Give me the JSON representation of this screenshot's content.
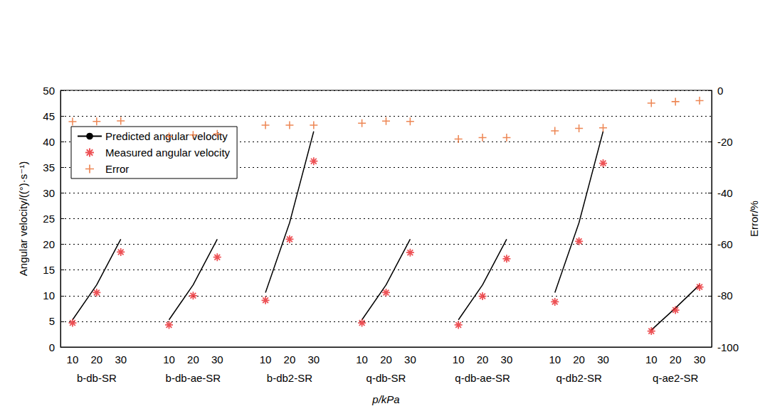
{
  "chart_data": {
    "type": "line",
    "x_label": "p/kPa",
    "y_label": "Angular velocity/((°)·s⁻¹)",
    "y2_label": "Error/%",
    "groups": [
      "b-db-SR",
      "b-db-ae-SR",
      "b-db2-SR",
      "q-db-SR",
      "q-db-ae-SR",
      "q-db2-SR",
      "q-ae2-SR"
    ],
    "categories": [
      10,
      20,
      30
    ],
    "series": [
      {
        "name": "Predicted angular velocity",
        "type": "line",
        "color": "#000000",
        "line_style": "solid",
        "marker": "none",
        "values": [
          [
            5.3,
            12.1,
            21.0
          ],
          [
            5.3,
            12.1,
            21.0
          ],
          [
            10.6,
            24.2,
            42.0
          ],
          [
            5.3,
            12.1,
            21.0
          ],
          [
            5.3,
            12.1,
            21.0
          ],
          [
            10.6,
            24.2,
            42.0
          ],
          [
            3.3,
            7.6,
            12.1
          ]
        ]
      },
      {
        "name": "Measured angular velocity",
        "type": "scatter",
        "color": "#e8262a",
        "marker": "asterisk",
        "values": [
          [
            4.7,
            10.6,
            18.5
          ],
          [
            4.3,
            10.0,
            17.5
          ],
          [
            9.1,
            21.0,
            36.2
          ],
          [
            4.7,
            10.6,
            18.4
          ],
          [
            4.3,
            9.9,
            17.2
          ],
          [
            8.8,
            20.6,
            35.8
          ],
          [
            3.1,
            7.2,
            11.7
          ]
        ]
      },
      {
        "name": "Error",
        "type": "scatter",
        "color": "#e8692a",
        "marker": "plus",
        "axis": "y2",
        "values": [
          [
            -12.2,
            -12.1,
            -11.9
          ],
          [
            -18.0,
            -17.4,
            -17.0
          ],
          [
            -13.6,
            -13.6,
            -13.6
          ],
          [
            -12.8,
            -12.0,
            -12.1
          ],
          [
            -19.0,
            -18.4,
            -18.4
          ],
          [
            -15.8,
            -14.8,
            -14.6
          ],
          [
            -5.0,
            -4.4,
            -4.0
          ]
        ]
      }
    ],
    "ylim": [
      0,
      50
    ],
    "yticks": [
      0,
      5,
      10,
      15,
      20,
      25,
      30,
      35,
      40,
      45,
      50
    ],
    "y2lim": [
      -100,
      0
    ],
    "y2ticks": [
      -100,
      -80,
      -60,
      -40,
      -20,
      0
    ],
    "grid": true,
    "legend": "upper left"
  }
}
